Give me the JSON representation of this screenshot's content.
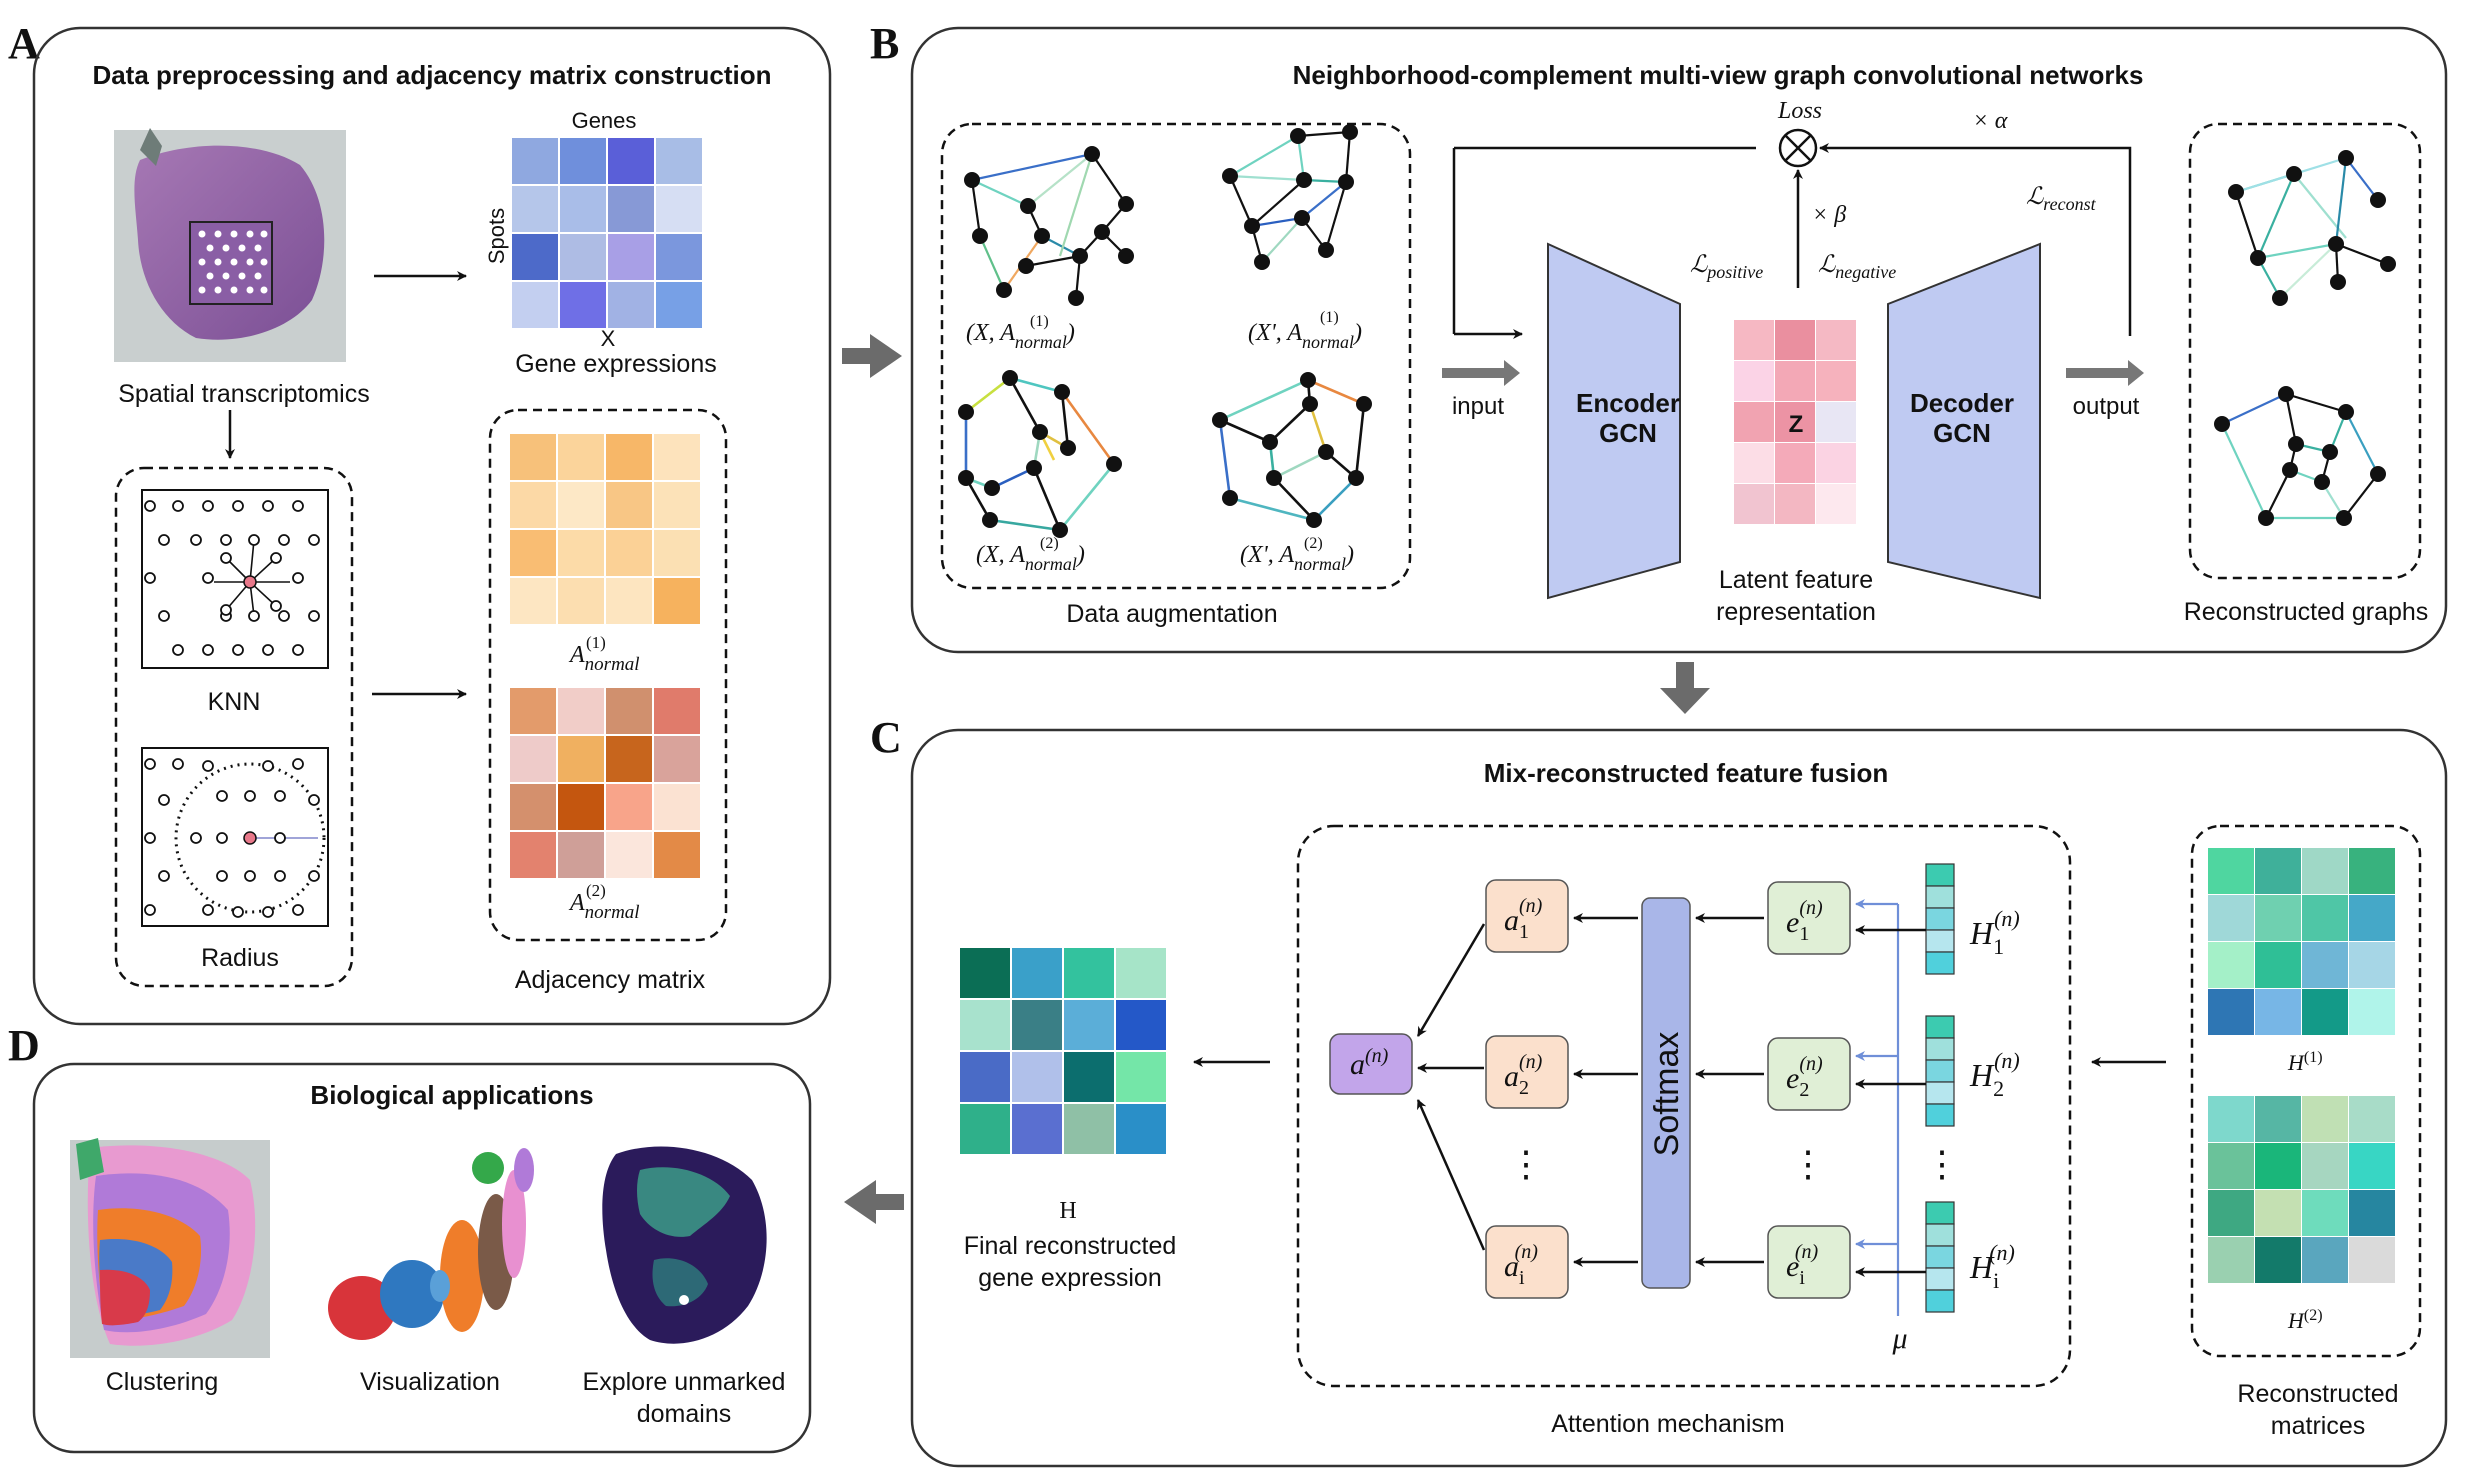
{
  "panels": {
    "a": {
      "letter": "A",
      "title": "Data preprocessing and adjacency matrix construction"
    },
    "b": {
      "letter": "B",
      "title": "Neighborhood-complement multi-view graph convolutional networks"
    },
    "c": {
      "letter": "C",
      "title": "Mix-reconstructed feature fusion"
    },
    "d": {
      "letter": "D",
      "title": "Biological applications"
    }
  },
  "panel_a": {
    "spatial_label": "Spatial transcriptomics",
    "genes_label": "Genes",
    "spots_label": "Spots",
    "x_label": "X",
    "gene_expr_label": "Gene expressions",
    "knn_label": "KNN",
    "radius_label": "Radius",
    "a1_base": "A",
    "a1_sup": "(1)",
    "a1_sub": "normal",
    "a2_base": "A",
    "a2_sup": "(2)",
    "a2_sub": "normal",
    "adjacency_label": "Adjacency matrix",
    "gene_colors": [
      "#8fa8e0",
      "#6f8fdc",
      "#5a5fd8",
      "#a8bde6",
      "#b5c6ea",
      "#a9bde8",
      "#8799d6",
      "#d6def3",
      "#4d6ac9",
      "#aebce4",
      "#a89fe6",
      "#7b97dd",
      "#c3cff0",
      "#6f6fe6",
      "#a1b2e4",
      "#77a0e6"
    ],
    "adj1_colors": [
      "#f7c17a",
      "#fbd49b",
      "#f7b768",
      "#fde3bc",
      "#fcd9a6",
      "#fde8c6",
      "#f8c685",
      "#fce2b8",
      "#f9bd73",
      "#fcdba8",
      "#fbd196",
      "#fbe0b3",
      "#fde6c2",
      "#fcdeb0",
      "#fde5c0",
      "#f6b25e"
    ],
    "adj2_colors": [
      "#e39b6b",
      "#f1cdc8",
      "#d0906e",
      "#e07b6b",
      "#eecbc9",
      "#f0b060",
      "#c7651d",
      "#d9a39b",
      "#d4906d",
      "#c4560f",
      "#f8a48a",
      "#fbe2d2",
      "#e3826e",
      "#cf9f98",
      "#fbe6dc",
      "#e38a47"
    ]
  },
  "panel_b": {
    "aug_label": "Data augmentation",
    "view1_label": "(X, A",
    "view1_sup": "(1)",
    "view1_sub": "normal",
    "view2_label": "(X', A",
    "view2_sup": "(1)",
    "view2_sub": "normal",
    "view3_label": "(X, A",
    "view3_sup": "(2)",
    "view3_sub": "normal",
    "view4_label": "(X', A",
    "view4_sup": "(2)",
    "view4_sub": "normal",
    "loss_label": "Loss",
    "alpha_label": "× α",
    "beta_label": "× β",
    "l_positive_base": "ℒ",
    "l_positive_sub": "positive",
    "l_negative_base": "ℒ",
    "l_negative_sub": "negative",
    "l_reconst_base": "ℒ",
    "l_reconst_sub": "reconst",
    "input_label": "input",
    "output_label": "output",
    "encoder_line1": "Encoder",
    "encoder_line2": "GCN",
    "decoder_line1": "Decoder",
    "decoder_line2": "GCN",
    "z_label": "Z",
    "latent_line1": "Latent feature",
    "latent_line2": "representation",
    "reconstructed_graphs_label": "Reconstructed graphs",
    "latent_colors": [
      "#f6b8c3",
      "#ea8f9f",
      "#f5b9c4",
      "#fbd3e6",
      "#f3a8b6",
      "#f6b2bd",
      "#f1a3b1",
      "#ec93a4",
      "#e8e6f4",
      "#fcdde6",
      "#f4aab9",
      "#fbd3e3",
      "#f1c4d0",
      "#f3b7c2",
      "#fde8ee"
    ]
  },
  "panel_c": {
    "final_label_line1": "Final reconstructed",
    "final_label_line2": "gene expression",
    "h_label": "H",
    "softmax_label": "Softmax",
    "attention_label": "Attention mechanism",
    "alpha_n": "a",
    "alpha_n_sup": "(n)",
    "a_nodes": [
      {
        "base": "a",
        "sub": "1",
        "sup": "(n)"
      },
      {
        "base": "a",
        "sub": "2",
        "sup": "(n)"
      },
      {
        "base": "a",
        "sub": "i",
        "sup": "(n)"
      }
    ],
    "e_nodes": [
      {
        "base": "e",
        "sub": "1",
        "sup": "(n)"
      },
      {
        "base": "e",
        "sub": "2",
        "sup": "(n)"
      },
      {
        "base": "e",
        "sub": "i",
        "sup": "(n)"
      }
    ],
    "h_nodes": [
      {
        "base": "H",
        "sub": "1",
        "sup": "(n)"
      },
      {
        "base": "H",
        "sub": "2",
        "sup": "(n)"
      },
      {
        "base": "H",
        "sub": "i",
        "sup": "(n)"
      }
    ],
    "mu_label": "μ",
    "dots": "⋮",
    "reconstructed_matrices_line1": "Reconstructed",
    "reconstructed_matrices_line2": "matrices",
    "h1_base": "H",
    "h1_sup": "(1)",
    "h2_base": "H",
    "h2_sup": "(2)",
    "final_colors": [
      "#0b6e55",
      "#3aa0c9",
      "#33c29e",
      "#a6e4c8",
      "#a8e2cd",
      "#3a7f86",
      "#5baed8",
      "#2458c8",
      "#4a6bc6",
      "#b0c0ea",
      "#0c6e6e",
      "#74e6a8",
      "#2fb08a",
      "#5a6fd0",
      "#8fc0a6",
      "#2a8fc8"
    ],
    "h1_colors": [
      "#4fd6a0",
      "#3fb09a",
      "#9fd8c6",
      "#38b27e",
      "#9fd8d8",
      "#6fd0b0",
      "#4fc6a6",
      "#45a8c8",
      "#a4f0c8",
      "#2fbf96",
      "#6fb6d6",
      "#a6d6e6",
      "#2e76b4",
      "#77b6e6",
      "#139a88",
      "#b0f4ea"
    ],
    "h2_colors": [
      "#7ed8cc",
      "#56b6a4",
      "#c0e0b4",
      "#a8dcc8",
      "#6ac29a",
      "#1ab67a",
      "#a6d6c0",
      "#38d6c4",
      "#3ea882",
      "#c4e0b2",
      "#6edcbc",
      "#2686a0",
      "#9ad0b0",
      "#137a6a",
      "#5aa6be",
      "#dadada"
    ],
    "h_vec_colors": [
      "#3ccbb0",
      "#9fe0dc",
      "#7ad6e0",
      "#b6e6ee",
      "#50d0dc"
    ]
  },
  "panel_d": {
    "clustering_label": "Clustering",
    "visualization_label": "Visualization",
    "explore_line1": "Explore unmarked",
    "explore_line2": "domains"
  }
}
